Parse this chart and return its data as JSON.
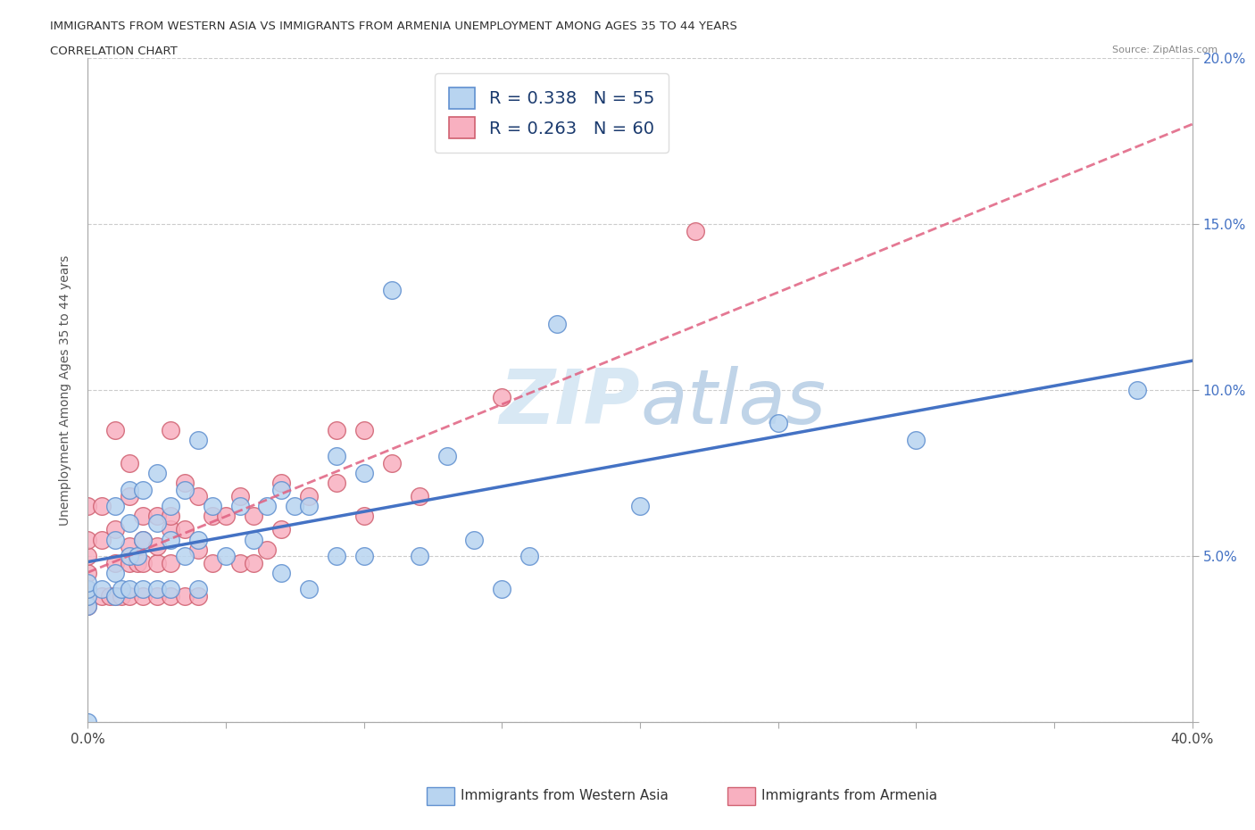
{
  "title_line1": "IMMIGRANTS FROM WESTERN ASIA VS IMMIGRANTS FROM ARMENIA UNEMPLOYMENT AMONG AGES 35 TO 44 YEARS",
  "title_line2": "CORRELATION CHART",
  "source_text": "Source: ZipAtlas.com",
  "ylabel": "Unemployment Among Ages 35 to 44 years",
  "xlim": [
    0.0,
    0.4
  ],
  "ylim": [
    0.0,
    0.2
  ],
  "xticks": [
    0.0,
    0.05,
    0.1,
    0.15,
    0.2,
    0.25,
    0.3,
    0.35,
    0.4
  ],
  "yticks": [
    0.0,
    0.05,
    0.1,
    0.15,
    0.2
  ],
  "color_western_asia": "#b8d4f0",
  "color_armenia": "#f8b0c0",
  "line_color_western_asia": "#4472c4",
  "line_color_armenia": "#e06080",
  "watermark_color": "#d0dff0",
  "R_western_asia": 0.338,
  "N_western_asia": 55,
  "R_armenia": 0.263,
  "N_armenia": 60,
  "legend_label_western": "Immigrants from Western Asia",
  "legend_label_armenia": "Immigrants from Armenia",
  "western_asia_x": [
    0.0,
    0.0,
    0.0,
    0.0,
    0.0,
    0.005,
    0.01,
    0.01,
    0.01,
    0.01,
    0.012,
    0.015,
    0.015,
    0.015,
    0.015,
    0.018,
    0.02,
    0.02,
    0.02,
    0.025,
    0.025,
    0.025,
    0.03,
    0.03,
    0.03,
    0.035,
    0.035,
    0.04,
    0.04,
    0.04,
    0.045,
    0.05,
    0.055,
    0.06,
    0.065,
    0.07,
    0.07,
    0.075,
    0.08,
    0.08,
    0.09,
    0.09,
    0.1,
    0.1,
    0.11,
    0.12,
    0.13,
    0.14,
    0.15,
    0.16,
    0.17,
    0.2,
    0.25,
    0.3,
    0.38
  ],
  "western_asia_y": [
    0.035,
    0.038,
    0.04,
    0.042,
    0.0,
    0.04,
    0.038,
    0.045,
    0.055,
    0.065,
    0.04,
    0.04,
    0.05,
    0.06,
    0.07,
    0.05,
    0.04,
    0.055,
    0.07,
    0.04,
    0.06,
    0.075,
    0.04,
    0.055,
    0.065,
    0.05,
    0.07,
    0.04,
    0.055,
    0.085,
    0.065,
    0.05,
    0.065,
    0.055,
    0.065,
    0.045,
    0.07,
    0.065,
    0.04,
    0.065,
    0.05,
    0.08,
    0.05,
    0.075,
    0.13,
    0.05,
    0.08,
    0.055,
    0.04,
    0.05,
    0.12,
    0.065,
    0.09,
    0.085,
    0.1
  ],
  "armenia_x": [
    0.0,
    0.0,
    0.0,
    0.0,
    0.0,
    0.0,
    0.0,
    0.005,
    0.005,
    0.005,
    0.008,
    0.01,
    0.01,
    0.01,
    0.01,
    0.012,
    0.015,
    0.015,
    0.015,
    0.015,
    0.015,
    0.018,
    0.02,
    0.02,
    0.02,
    0.02,
    0.025,
    0.025,
    0.025,
    0.025,
    0.03,
    0.03,
    0.03,
    0.03,
    0.03,
    0.035,
    0.035,
    0.035,
    0.04,
    0.04,
    0.04,
    0.045,
    0.045,
    0.05,
    0.055,
    0.055,
    0.06,
    0.06,
    0.065,
    0.07,
    0.07,
    0.08,
    0.09,
    0.09,
    0.1,
    0.1,
    0.11,
    0.12,
    0.15,
    0.22
  ],
  "armenia_y": [
    0.035,
    0.038,
    0.04,
    0.045,
    0.05,
    0.055,
    0.065,
    0.038,
    0.055,
    0.065,
    0.038,
    0.038,
    0.048,
    0.058,
    0.088,
    0.038,
    0.038,
    0.048,
    0.053,
    0.068,
    0.078,
    0.048,
    0.038,
    0.048,
    0.055,
    0.062,
    0.038,
    0.048,
    0.053,
    0.062,
    0.038,
    0.048,
    0.058,
    0.062,
    0.088,
    0.038,
    0.058,
    0.072,
    0.038,
    0.052,
    0.068,
    0.048,
    0.062,
    0.062,
    0.048,
    0.068,
    0.048,
    0.062,
    0.052,
    0.058,
    0.072,
    0.068,
    0.072,
    0.088,
    0.062,
    0.088,
    0.078,
    0.068,
    0.098,
    0.148
  ]
}
